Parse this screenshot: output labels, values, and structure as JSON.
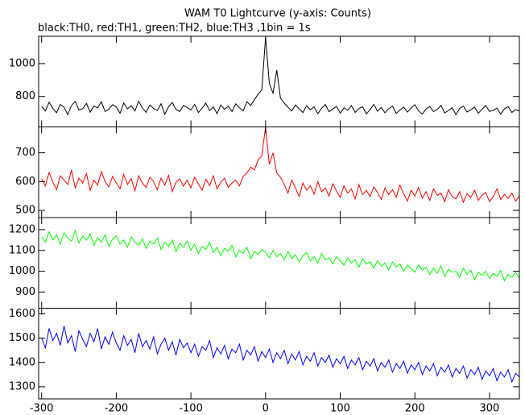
{
  "chart_data": {
    "type": "line",
    "title": "WAM T0 Lightcurve (y-axis: Counts)",
    "subtitle": "black:TH0, red:TH1, green:TH2, blue:TH3 ,1bin = 1s",
    "xlim": [
      -304,
      340
    ],
    "xticks": [
      -300,
      -200,
      -100,
      0,
      100,
      200,
      300
    ],
    "x": [
      -300,
      -295,
      -290,
      -285,
      -280,
      -275,
      -270,
      -265,
      -260,
      -255,
      -250,
      -245,
      -240,
      -235,
      -230,
      -225,
      -220,
      -215,
      -210,
      -205,
      -200,
      -195,
      -190,
      -185,
      -180,
      -175,
      -170,
      -165,
      -160,
      -155,
      -150,
      -145,
      -140,
      -135,
      -130,
      -125,
      -120,
      -115,
      -110,
      -105,
      -100,
      -95,
      -90,
      -85,
      -80,
      -75,
      -70,
      -65,
      -60,
      -55,
      -50,
      -45,
      -40,
      -35,
      -30,
      -25,
      -20,
      -15,
      -10,
      -5,
      0,
      5,
      10,
      15,
      20,
      25,
      30,
      35,
      40,
      45,
      50,
      55,
      60,
      65,
      70,
      75,
      80,
      85,
      90,
      95,
      100,
      105,
      110,
      115,
      120,
      125,
      130,
      135,
      140,
      145,
      150,
      155,
      160,
      165,
      170,
      175,
      180,
      185,
      190,
      195,
      200,
      205,
      210,
      215,
      220,
      225,
      230,
      235,
      240,
      245,
      250,
      255,
      260,
      265,
      270,
      275,
      280,
      285,
      290,
      295,
      300,
      305,
      310,
      315,
      320,
      325,
      330,
      335,
      340
    ],
    "series": [
      {
        "color": "#000000",
        "ylim": [
          615,
          1166
        ],
        "yticks": [
          800,
          1000
        ],
        "values": [
          740,
          712,
          765,
          728,
          701,
          752,
          735,
          690,
          745,
          770,
          718,
          726,
          758,
          705,
          742,
          731,
          768,
          709,
          722,
          750,
          736,
          698,
          760,
          725,
          744,
          712,
          771,
          730,
          703,
          748,
          727,
          715,
          756,
          692,
          738,
          764,
          721,
          709,
          745,
          733,
          718,
          752,
          703,
          729,
          760,
          714,
          737,
          696,
          748,
          722,
          741,
          708,
          755,
          731,
          712,
          768,
          745,
          780,
          815,
          840,
          1160,
          880,
          820,
          960,
          790,
          760,
          735,
          712,
          748,
          726,
          702,
          744,
          719,
          737,
          695,
          728,
          751,
          708,
          723,
          740,
          699,
          731,
          716,
          745,
          703,
          727,
          738,
          694,
          720,
          752,
          710,
          733,
          701,
          726,
          742,
          697,
          718,
          736,
          705,
          729,
          750,
          712,
          693,
          724,
          739,
          708,
          721,
          746,
          700,
          715,
          732,
          690,
          727,
          741,
          706,
          719,
          735,
          698,
          723,
          744,
          709,
          716,
          730,
          692,
          725,
          738,
          703,
          720,
          711
        ]
      },
      {
        "color": "#ff0000",
        "ylim": [
          475,
          790
        ],
        "yticks": [
          500,
          600,
          700
        ],
        "values": [
          610,
          585,
          632,
          598,
          572,
          620,
          605,
          590,
          640,
          578,
          612,
          595,
          628,
          570,
          605,
          588,
          635,
          600,
          582,
          618,
          596,
          575,
          625,
          590,
          610,
          568,
          620,
          594,
          580,
          615,
          600,
          572,
          612,
          588,
          622,
          565,
          598,
          610,
          584,
          605,
          578,
          615,
          592,
          570,
          608,
          586,
          620,
          575,
          598,
          612,
          580,
          595,
          605,
          585,
          618,
          630,
          650,
          640,
          675,
          690,
          790,
          660,
          700,
          630,
          615,
          590,
          560,
          605,
          578,
          548,
          595,
          570,
          585,
          556,
          600,
          565,
          578,
          550,
          592,
          568,
          545,
          585,
          560,
          575,
          540,
          590,
          555,
          570,
          548,
          582,
          562,
          538,
          578,
          555,
          572,
          545,
          588,
          558,
          532,
          570,
          550,
          580,
          542,
          565,
          535,
          575,
          552,
          560,
          530,
          572,
          548,
          540,
          565,
          528,
          558,
          545,
          570,
          535,
          552,
          562,
          530,
          548,
          575,
          538,
          555,
          542,
          560,
          532,
          550
        ]
      },
      {
        "color": "#00ff00",
        "ylim": [
          822,
          1258
        ],
        "yticks": [
          900,
          1000,
          1100,
          1200
        ],
        "values": [
          1165,
          1140,
          1190,
          1150,
          1175,
          1130,
          1185,
          1160,
          1145,
          1195,
          1135,
          1170,
          1150,
          1180,
          1125,
          1160,
          1140,
          1175,
          1120,
          1155,
          1170,
          1130,
          1150,
          1115,
          1165,
          1140,
          1125,
          1155,
          1110,
          1145,
          1130,
          1160,
          1105,
          1140,
          1120,
          1150,
          1095,
          1135,
          1115,
          1145,
          1100,
          1130,
          1085,
          1120,
          1105,
          1140,
          1090,
          1115,
          1075,
          1110,
          1095,
          1125,
          1070,
          1100,
          1085,
          1115,
          1060,
          1095,
          1080,
          1105,
          1090,
          1065,
          1100,
          1070,
          1085,
          1055,
          1095,
          1060,
          1080,
          1045,
          1075,
          1090,
          1050,
          1070,
          1040,
          1085,
          1055,
          1065,
          1035,
          1070,
          1050,
          1030,
          1065,
          1040,
          1055,
          1020,
          1060,
          1035,
          1045,
          1015,
          1050,
          1025,
          1040,
          1005,
          1045,
          1020,
          1035,
          1000,
          1030,
          1015,
          995,
          1030,
          1005,
          1020,
          985,
          1015,
          990,
          1025,
          975,
          1010,
          995,
          1000,
          970,
          1015,
          985,
          1005,
          960,
          995,
          980,
          1000,
          965,
          990,
          975,
          1005,
          955,
          985,
          970,
          995,
          965
        ]
      },
      {
        "color": "#0000ff",
        "ylim": [
          1250,
          1623
        ],
        "yticks": [
          1300,
          1400,
          1500,
          1600
        ],
        "values": [
          1500,
          1460,
          1540,
          1490,
          1520,
          1470,
          1550,
          1480,
          1510,
          1445,
          1530,
          1495,
          1465,
          1520,
          1485,
          1540,
          1455,
          1505,
          1475,
          1525,
          1480,
          1450,
          1510,
          1470,
          1495,
          1440,
          1520,
          1465,
          1490,
          1455,
          1505,
          1435,
          1475,
          1500,
          1450,
          1485,
          1430,
          1495,
          1460,
          1480,
          1440,
          1475,
          1425,
          1465,
          1450,
          1490,
          1420,
          1460,
          1435,
          1470,
          1415,
          1455,
          1440,
          1475,
          1410,
          1450,
          1430,
          1465,
          1405,
          1445,
          1420,
          1455,
          1400,
          1440,
          1415,
          1450,
          1395,
          1435,
          1410,
          1445,
          1390,
          1425,
          1405,
          1440,
          1385,
          1420,
          1400,
          1430,
          1380,
          1415,
          1395,
          1425,
          1375,
          1410,
          1390,
          1420,
          1370,
          1405,
          1385,
          1415,
          1365,
          1400,
          1380,
          1410,
          1360,
          1395,
          1375,
          1405,
          1355,
          1390,
          1370,
          1400,
          1350,
          1385,
          1365,
          1395,
          1345,
          1380,
          1360,
          1390,
          1340,
          1375,
          1355,
          1385,
          1335,
          1370,
          1350,
          1380,
          1330,
          1365,
          1345,
          1375,
          1325,
          1360,
          1340,
          1370,
          1320,
          1355,
          1340
        ]
      }
    ]
  }
}
